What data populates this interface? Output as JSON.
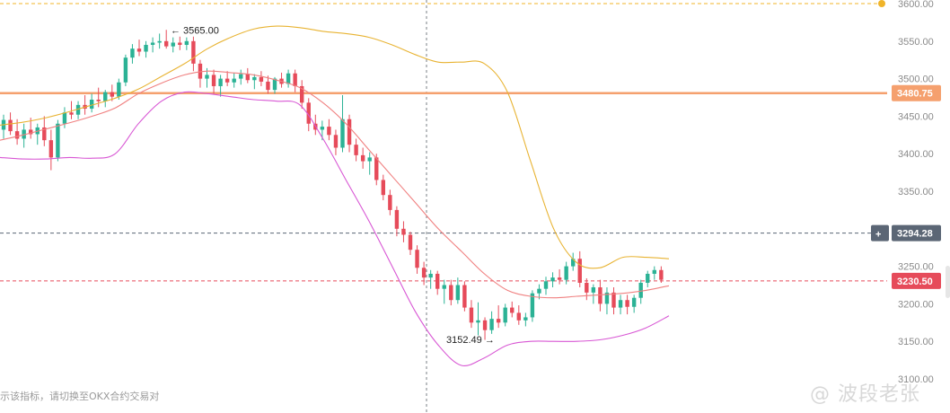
{
  "chart_data": {
    "type": "candlestick",
    "title": "",
    "xlabel": "",
    "ylabel": "",
    "ylim": [
      3100,
      3600
    ],
    "y_ticks": [
      3600,
      3550,
      3500,
      3450,
      3400,
      3350,
      3300,
      3250,
      3200,
      3150,
      3100
    ],
    "y_tick_labels": [
      "3600.00",
      "3550.00",
      "3500.00",
      "3450.00",
      "3400.00",
      "3350.00",
      "3300.00",
      "3250.00",
      "3200.00",
      "3150.00",
      "3100.00"
    ],
    "grid": false,
    "price_levels": [
      {
        "label": "3480.75",
        "value": 3480.75,
        "color": "#f5a06e",
        "style": "solid-thick"
      },
      {
        "label": "3294.28",
        "value": 3294.28,
        "color": "#596574",
        "style": "dashed"
      },
      {
        "label": "3230.50",
        "value": 3230.5,
        "color": "#e64b5a",
        "style": "dashed"
      }
    ],
    "top_marker_value": 3600,
    "annotations": [
      {
        "text": "← 3565.00",
        "value": 3565.0,
        "kind": "high"
      },
      {
        "text": "3152.49 →",
        "value": 3152.49,
        "kind": "low"
      }
    ],
    "ohlc": [
      [
        3432,
        3452,
        3420,
        3445
      ],
      [
        3445,
        3455,
        3425,
        3430
      ],
      [
        3430,
        3446,
        3412,
        3420
      ],
      [
        3420,
        3440,
        3408,
        3432
      ],
      [
        3432,
        3448,
        3420,
        3426
      ],
      [
        3426,
        3440,
        3412,
        3435
      ],
      [
        3435,
        3450,
        3410,
        3418
      ],
      [
        3418,
        3432,
        3378,
        3395
      ],
      [
        3395,
        3445,
        3390,
        3440
      ],
      [
        3440,
        3462,
        3434,
        3455
      ],
      [
        3455,
        3470,
        3446,
        3452
      ],
      [
        3452,
        3470,
        3446,
        3465
      ],
      [
        3465,
        3478,
        3452,
        3460
      ],
      [
        3460,
        3480,
        3455,
        3472
      ],
      [
        3472,
        3488,
        3462,
        3470
      ],
      [
        3470,
        3485,
        3462,
        3482
      ],
      [
        3482,
        3492,
        3470,
        3476
      ],
      [
        3476,
        3500,
        3472,
        3495
      ],
      [
        3495,
        3532,
        3490,
        3528
      ],
      [
        3528,
        3546,
        3520,
        3540
      ],
      [
        3540,
        3552,
        3530,
        3536
      ],
      [
        3536,
        3550,
        3528,
        3545
      ],
      [
        3545,
        3555,
        3535,
        3548
      ],
      [
        3548,
        3560,
        3540,
        3550
      ],
      [
        3550,
        3565,
        3540,
        3543
      ],
      [
        3543,
        3555,
        3535,
        3548
      ],
      [
        3548,
        3556,
        3538,
        3545
      ],
      [
        3545,
        3555,
        3538,
        3550
      ],
      [
        3550,
        3556,
        3510,
        3520
      ],
      [
        3520,
        3525,
        3488,
        3500
      ],
      [
        3500,
        3514,
        3488,
        3505
      ],
      [
        3505,
        3512,
        3480,
        3490
      ],
      [
        3490,
        3505,
        3476,
        3500
      ],
      [
        3500,
        3510,
        3490,
        3495
      ],
      [
        3495,
        3508,
        3488,
        3500
      ],
      [
        3500,
        3512,
        3492,
        3506
      ],
      [
        3506,
        3514,
        3494,
        3498
      ],
      [
        3498,
        3506,
        3486,
        3502
      ],
      [
        3502,
        3510,
        3490,
        3496
      ],
      [
        3496,
        3504,
        3480,
        3485
      ],
      [
        3485,
        3502,
        3480,
        3500
      ],
      [
        3500,
        3508,
        3488,
        3493
      ],
      [
        3493,
        3512,
        3488,
        3507
      ],
      [
        3507,
        3512,
        3482,
        3490
      ],
      [
        3490,
        3498,
        3460,
        3468
      ],
      [
        3468,
        3474,
        3430,
        3440
      ],
      [
        3440,
        3452,
        3425,
        3432
      ],
      [
        3432,
        3444,
        3418,
        3436
      ],
      [
        3436,
        3446,
        3418,
        3425
      ],
      [
        3425,
        3432,
        3398,
        3408
      ],
      [
        3408,
        3478,
        3402,
        3446
      ],
      [
        3446,
        3452,
        3402,
        3412
      ],
      [
        3412,
        3420,
        3390,
        3398
      ],
      [
        3398,
        3408,
        3380,
        3390
      ],
      [
        3390,
        3402,
        3372,
        3395
      ],
      [
        3395,
        3400,
        3358,
        3365
      ],
      [
        3365,
        3372,
        3338,
        3345
      ],
      [
        3345,
        3352,
        3318,
        3325
      ],
      [
        3325,
        3330,
        3290,
        3300
      ],
      [
        3300,
        3310,
        3282,
        3292
      ],
      [
        3292,
        3296,
        3265,
        3272
      ],
      [
        3272,
        3278,
        3240,
        3248
      ],
      [
        3248,
        3256,
        3225,
        3235
      ],
      [
        3235,
        3245,
        3220,
        3240
      ],
      [
        3240,
        3244,
        3212,
        3220
      ],
      [
        3220,
        3232,
        3200,
        3225
      ],
      [
        3225,
        3232,
        3198,
        3205
      ],
      [
        3205,
        3235,
        3200,
        3225
      ],
      [
        3225,
        3230,
        3190,
        3195
      ],
      [
        3195,
        3205,
        3168,
        3175
      ],
      [
        3175,
        3202,
        3158,
        3178
      ],
      [
        3178,
        3182,
        3152,
        3165
      ],
      [
        3165,
        3190,
        3160,
        3180
      ],
      [
        3180,
        3198,
        3168,
        3175
      ],
      [
        3175,
        3200,
        3170,
        3195
      ],
      [
        3195,
        3203,
        3182,
        3188
      ],
      [
        3188,
        3198,
        3172,
        3178
      ],
      [
        3178,
        3188,
        3170,
        3182
      ],
      [
        3182,
        3218,
        3176,
        3214
      ],
      [
        3214,
        3226,
        3206,
        3220
      ],
      [
        3220,
        3236,
        3212,
        3230
      ],
      [
        3230,
        3242,
        3222,
        3235
      ],
      [
        3235,
        3246,
        3226,
        3232
      ],
      [
        3232,
        3256,
        3226,
        3250
      ],
      [
        3250,
        3268,
        3244,
        3260
      ],
      [
        3260,
        3270,
        3222,
        3228
      ],
      [
        3228,
        3234,
        3205,
        3215
      ],
      [
        3215,
        3226,
        3200,
        3222
      ],
      [
        3222,
        3232,
        3190,
        3200
      ],
      [
        3200,
        3222,
        3186,
        3215
      ],
      [
        3215,
        3222,
        3186,
        3195
      ],
      [
        3195,
        3212,
        3186,
        3205
      ],
      [
        3205,
        3212,
        3186,
        3196
      ],
      [
        3196,
        3212,
        3188,
        3208
      ],
      [
        3208,
        3232,
        3200,
        3228
      ],
      [
        3228,
        3244,
        3222,
        3240
      ],
      [
        3240,
        3250,
        3232,
        3245
      ],
      [
        3245,
        3250,
        3228,
        3232
      ]
    ],
    "bollinger_upper": [
      3438,
      3442,
      3448,
      3456,
      3465,
      3474,
      3486,
      3503,
      3520,
      3540,
      3555,
      3566,
      3570,
      3568,
      3563,
      3560,
      3555,
      3545,
      3532,
      3522,
      3522,
      3520,
      3482,
      3390,
      3300,
      3255,
      3248,
      3262,
      3262,
      3260
    ],
    "bollinger_middle": [
      3418,
      3425,
      3433,
      3441,
      3450,
      3461,
      3480,
      3494,
      3505,
      3510,
      3508,
      3505,
      3498,
      3488,
      3468,
      3440,
      3405,
      3370,
      3335,
      3300,
      3270,
      3240,
      3218,
      3210,
      3208,
      3210,
      3212,
      3214,
      3218,
      3224
    ],
    "bollinger_lower": [
      3395,
      3393,
      3393,
      3395,
      3394,
      3400,
      3440,
      3470,
      3482,
      3480,
      3476,
      3472,
      3470,
      3465,
      3420,
      3365,
      3310,
      3250,
      3190,
      3145,
      3118,
      3128,
      3145,
      3150,
      3150,
      3150,
      3152,
      3158,
      3168,
      3184
    ],
    "band_colors": {
      "upper": "#e8b332",
      "middle": "#f08080",
      "lower": "#d857d4"
    },
    "candle_colors": {
      "up": "#2bb295",
      "down": "#e64b5a"
    }
  },
  "footer_note": "示该指标，请切换至OKX合约交易对",
  "watermark": "@ 波段老张",
  "crosshair_button": "+"
}
